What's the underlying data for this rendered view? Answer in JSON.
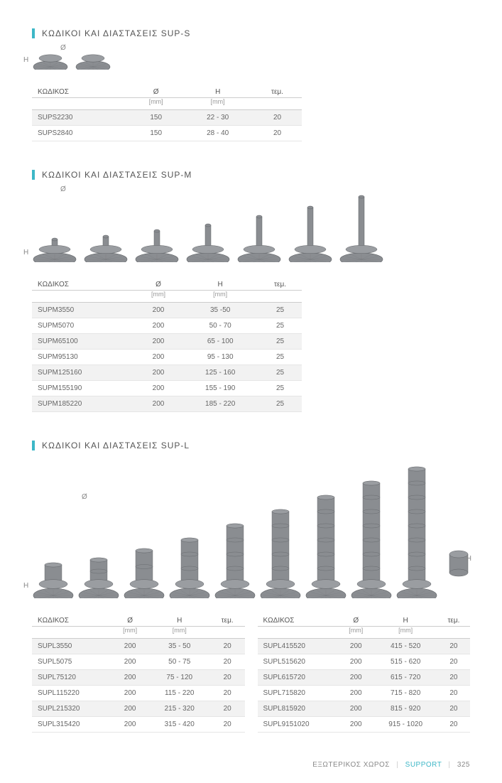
{
  "accent_color": "#3db7c7",
  "text_color": "#555555",
  "muted_color": "#999999",
  "row_alt_bg": "#f2f2f2",
  "border_color": "#e5e5e5",
  "pedestal_fill": "#8a8d91",
  "pedestal_stroke": "#5f6266",
  "sections": {
    "sup_s": {
      "title": "ΚΩΔΙΚΟΙ ΚΑΙ ΔΙΑΣΤΑΣΕΙΣ SUP-S",
      "h_label": "H",
      "diam_label": "Ø",
      "pedestal_heights": [
        12,
        12
      ],
      "table": {
        "columns": [
          "ΚΩΔΙΚΟΣ",
          "Ø",
          "H",
          "τεμ."
        ],
        "sub_columns": [
          "",
          "[mm]",
          "[mm]",
          ""
        ],
        "rows": [
          [
            "SUPS2230",
            "150",
            "22 - 30",
            "20"
          ],
          [
            "SUPS2840",
            "150",
            "28 - 40",
            "20"
          ]
        ]
      }
    },
    "sup_m": {
      "title": "ΚΩΔΙΚΟΙ ΚΑΙ ΔΙΑΣΤΑΣΕΙΣ SUP-M",
      "h_label": "H",
      "diam_label": "Ø",
      "pedestal_heights": [
        10,
        14,
        22,
        30,
        42,
        55,
        70
      ],
      "table": {
        "columns": [
          "ΚΩΔΙΚΟΣ",
          "Ø",
          "H",
          "τεμ."
        ],
        "sub_columns": [
          "",
          "[mm]",
          "[mm]",
          ""
        ],
        "rows": [
          [
            "SUPM3550",
            "200",
            "35 -50",
            "25"
          ],
          [
            "SUPM5070",
            "200",
            "50 - 70",
            "25"
          ],
          [
            "SUPM65100",
            "200",
            "65 - 100",
            "25"
          ],
          [
            "SUPM95130",
            "200",
            "95 - 130",
            "25"
          ],
          [
            "SUPM125160",
            "200",
            "125 - 160",
            "25"
          ],
          [
            "SUPM155190",
            "200",
            "155 - 190",
            "25"
          ],
          [
            "SUPM185220",
            "200",
            "185 - 220",
            "25"
          ]
        ]
      }
    },
    "sup_l": {
      "title": "ΚΩΔΙΚΟΙ ΚΑΙ ΔΙΑΣΤΑΣΕΙΣ SUP-L",
      "h_label": "H",
      "diam_label": "Ø",
      "pedestal_heights": [
        25,
        32,
        45,
        60,
        80,
        100,
        120,
        140,
        160
      ],
      "extra_piece_height": 30,
      "table_left": {
        "columns": [
          "ΚΩΔΙΚΟΣ",
          "Ø",
          "H",
          "τεμ."
        ],
        "sub_columns": [
          "",
          "[mm]",
          "[mm]",
          ""
        ],
        "rows": [
          [
            "SUPL3550",
            "200",
            "35 - 50",
            "20"
          ],
          [
            "SUPL5075",
            "200",
            "50 - 75",
            "20"
          ],
          [
            "SUPL75120",
            "200",
            "75 - 120",
            "20"
          ],
          [
            "SUPL115220",
            "200",
            "115 - 220",
            "20"
          ],
          [
            "SUPL215320",
            "200",
            "215 - 320",
            "20"
          ],
          [
            "SUPL315420",
            "200",
            "315 - 420",
            "20"
          ]
        ]
      },
      "table_right": {
        "columns": [
          "ΚΩΔΙΚΟΣ",
          "Ø",
          "H",
          "τεμ."
        ],
        "sub_columns": [
          "",
          "[mm]",
          "[mm]",
          ""
        ],
        "rows": [
          [
            "SUPL415520",
            "200",
            "415 - 520",
            "20"
          ],
          [
            "SUPL515620",
            "200",
            "515 - 620",
            "20"
          ],
          [
            "SUPL615720",
            "200",
            "615 - 720",
            "20"
          ],
          [
            "SUPL715820",
            "200",
            "715 - 820",
            "20"
          ],
          [
            "SUPL815920",
            "200",
            "815 - 920",
            "20"
          ],
          [
            "SUPL9151020",
            "200",
            "915 - 1020",
            "20"
          ]
        ]
      }
    }
  },
  "footer": {
    "category": "ΕΞΩΤΕΡΙΚΟΣ ΧΩΡΟΣ",
    "brand": "SUPPORT",
    "page": "325"
  }
}
